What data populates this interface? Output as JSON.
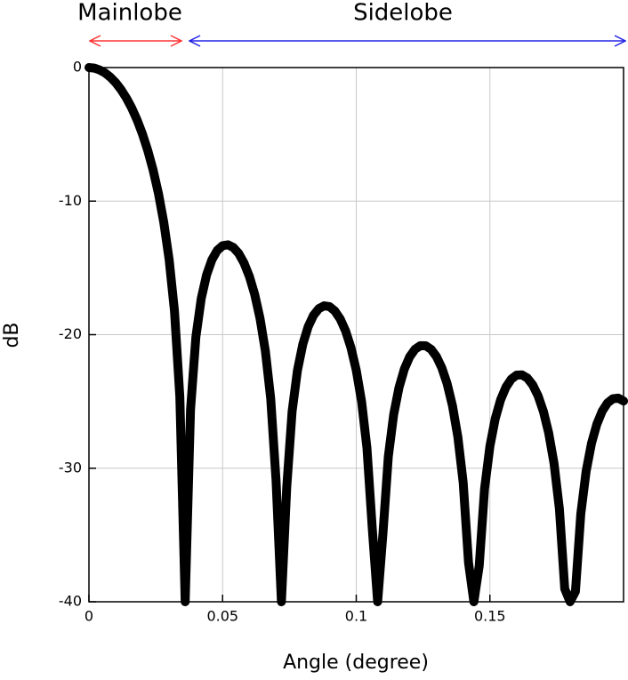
{
  "chart_data": {
    "type": "line",
    "annotations": [
      {
        "text": "Mainlobe",
        "color": "#ff3333"
      },
      {
        "text": "Sidelobe",
        "color": "#2323e6"
      }
    ],
    "x_label": "Angle  (degree)",
    "y_label": "dB",
    "x": [
      0,
      0.002,
      0.004,
      0.006,
      0.008,
      0.01,
      0.012,
      0.014,
      0.016,
      0.018,
      0.02,
      0.022,
      0.024,
      0.026,
      0.028,
      0.03,
      0.032,
      0.034,
      0.036,
      0.038,
      0.04,
      0.042,
      0.044,
      0.046,
      0.048,
      0.05,
      0.052,
      0.054,
      0.056,
      0.058,
      0.06,
      0.062,
      0.064,
      0.066,
      0.068,
      0.07,
      0.072,
      0.074,
      0.076,
      0.078,
      0.08,
      0.082,
      0.084,
      0.086,
      0.088,
      0.09,
      0.092,
      0.094,
      0.096,
      0.098,
      0.1,
      0.102,
      0.104,
      0.106,
      0.108,
      0.11,
      0.112,
      0.114,
      0.116,
      0.118,
      0.12,
      0.122,
      0.124,
      0.126,
      0.128,
      0.13,
      0.132,
      0.134,
      0.136,
      0.138,
      0.14,
      0.142,
      0.144,
      0.146,
      0.148,
      0.15,
      0.152,
      0.154,
      0.156,
      0.158,
      0.16,
      0.162,
      0.164,
      0.166,
      0.168,
      0.17,
      0.172,
      0.174,
      0.176,
      0.178,
      0.18,
      0.182,
      0.184,
      0.186,
      0.188,
      0.19,
      0.192,
      0.194,
      0.196,
      0.198,
      0.2
    ],
    "series": [
      {
        "color": "#000000",
        "values": [
          0,
          -0.04,
          -0.18,
          -0.4,
          -0.72,
          -1.13,
          -1.65,
          -2.28,
          -3.03,
          -3.92,
          -4.97,
          -6.21,
          -7.67,
          -9.43,
          -11.6,
          -14.38,
          -18.24,
          -24.65,
          -40,
          -25.62,
          -20.18,
          -17.3,
          -15.53,
          -14.39,
          -13.69,
          -13.34,
          -13.27,
          -13.47,
          -13.91,
          -14.63,
          -15.63,
          -16.98,
          -18.78,
          -21.23,
          -24.79,
          -30.93,
          -40,
          -31.41,
          -25.75,
          -22.68,
          -20.72,
          -19.41,
          -18.55,
          -18.05,
          -17.84,
          -17.9,
          -18.23,
          -18.82,
          -19.71,
          -20.96,
          -22.66,
          -25.01,
          -28.48,
          -34.53,
          -40,
          -34.85,
          -29.12,
          -25.98,
          -23.95,
          -22.57,
          -21.65,
          -21.09,
          -20.82,
          -20.83,
          -21.1,
          -21.64,
          -22.48,
          -23.67,
          -25.33,
          -27.64,
          -31.06,
          -37.07,
          -40,
          -37.31,
          -31.54,
          -28.36,
          -26.29,
          -24.88,
          -23.93,
          -23.33,
          -23.03,
          -23.01,
          -23.25,
          -23.76,
          -24.57,
          -25.74,
          -27.37,
          -29.65,
          -33.05,
          -39.03,
          -40,
          -39.23,
          -33.43,
          -30.23,
          -28.14,
          -26.71,
          -25.73,
          -25.11,
          -24.8,
          -24.75,
          -24.97
        ]
      }
    ],
    "xlim": [
      0,
      0.2
    ],
    "ylim": [
      -40,
      0
    ],
    "xticks": [
      0,
      0.05,
      0.1,
      0.15
    ],
    "yticks": [
      0,
      -10,
      -20,
      -30,
      -40
    ],
    "grid": true
  }
}
